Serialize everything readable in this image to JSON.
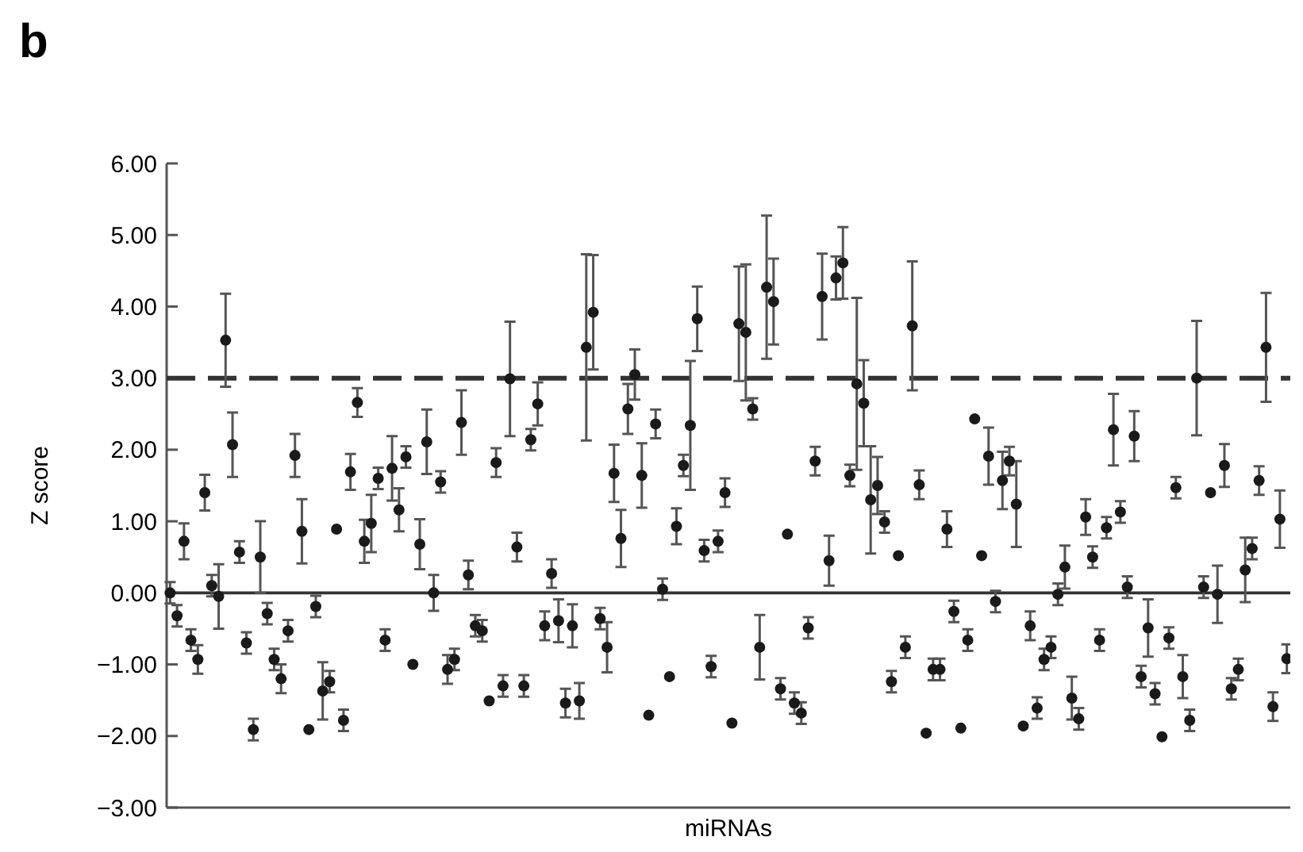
{
  "chart_data": {
    "type": "scatter",
    "title": "b",
    "xlabel": "miRNAs",
    "ylabel": "Z score",
    "color": "#1a1a1a",
    "marker": "circle",
    "tick_labels": "y",
    "ylim": [
      -3,
      6
    ],
    "yticks": [
      {
        "value": 6,
        "label": "6.00"
      },
      {
        "value": 5,
        "label": "5.00"
      },
      {
        "value": 4,
        "label": "4.00"
      },
      {
        "value": 3,
        "label": "3.00"
      },
      {
        "value": 2,
        "label": "2.00"
      },
      {
        "value": 1,
        "label": "1.00"
      },
      {
        "value": 0,
        "label": "0.00"
      },
      {
        "value": -1,
        "label": "−1.00"
      },
      {
        "value": -2,
        "label": "−2.00"
      },
      {
        "value": -3,
        "label": "−3.00"
      }
    ],
    "ref_lines": [
      {
        "axis": "y",
        "value": 3,
        "line_style": "dashed",
        "color": "#333333"
      },
      {
        "axis": "y",
        "value": 0,
        "line_style": "solid",
        "color": "#333333"
      }
    ],
    "categories": [
      null,
      null,
      null,
      null,
      null,
      null,
      null,
      null,
      null,
      null,
      null,
      null,
      null,
      null,
      null,
      null,
      null,
      null,
      null,
      null,
      null,
      null,
      null,
      null,
      null,
      null,
      null,
      null,
      null,
      null,
      null,
      null,
      null,
      null,
      null,
      null,
      null,
      null,
      null,
      null,
      null,
      null,
      null,
      null,
      null,
      null,
      null,
      null,
      null,
      null,
      null,
      null,
      null,
      null,
      null,
      null,
      null,
      null,
      null,
      null,
      null,
      null,
      null,
      null,
      null,
      null,
      null,
      null,
      null,
      null,
      null,
      null,
      null,
      null,
      null,
      null,
      null,
      null,
      null,
      null,
      null,
      null,
      null,
      null,
      null,
      null,
      null,
      null,
      null,
      null,
      null,
      null,
      null,
      null,
      null,
      null,
      null,
      null,
      null,
      null,
      null,
      null,
      null,
      null,
      null,
      null,
      null,
      null,
      null,
      null,
      null,
      null,
      null,
      null,
      null,
      null,
      null,
      null,
      null,
      null,
      null,
      null,
      null,
      null,
      null,
      null,
      null,
      null,
      null,
      null,
      null,
      null,
      null,
      null,
      null,
      null,
      null,
      null,
      null,
      null,
      null,
      null,
      null,
      null,
      null,
      null,
      null,
      null,
      null,
      null,
      null,
      null,
      null,
      null,
      null,
      null,
      null,
      null,
      null,
      null,
      null,
      null
    ],
    "values": [
      0.0,
      -0.32,
      0.72,
      -0.66,
      -0.93,
      1.4,
      0.1,
      -0.05,
      3.53,
      2.07,
      0.57,
      -0.7,
      -1.91,
      0.5,
      -0.29,
      -0.93,
      -1.2,
      -0.53,
      1.92,
      0.86,
      -1.91,
      -0.19,
      -1.37,
      -1.24,
      0.89,
      -1.78,
      1.69,
      2.66,
      0.72,
      0.97,
      1.6,
      -0.66,
      1.74,
      1.16,
      1.9,
      -1.0,
      0.68,
      2.11,
      0,
      1.55,
      -1.07,
      -0.93,
      2.38,
      0.25,
      -0.46,
      -0.53,
      -1.51,
      1.82,
      -1.3,
      2.99,
      0.64,
      -1.3,
      2.14,
      2.64,
      -0.46,
      0.27,
      -0.39,
      -1.54,
      -0.46,
      -1.51,
      3.43,
      3.92,
      -0.36,
      -0.76,
      1.67,
      0.76,
      2.57,
      3.05,
      1.64,
      -1.71,
      2.36,
      0.05,
      -1.17,
      0.93,
      1.78,
      2.34,
      3.83,
      0.59,
      -1.03,
      0.72,
      1.4,
      -1.82,
      3.76,
      3.64,
      2.57,
      -0.76,
      4.27,
      4.07,
      -1.34,
      0.82,
      -1.54,
      -1.68,
      -0.49,
      1.84,
      4.14,
      0.45,
      4.4,
      4.61,
      1.64,
      2.92,
      2.65,
      1.3,
      1.5,
      0.99,
      -1.24,
      0.52,
      -0.76,
      3.73,
      1.51,
      -1.96,
      -1.07,
      -1.07,
      0.89,
      -0.26,
      -1.89,
      -0.66,
      2.43,
      0.52,
      1.91,
      -0.12,
      1.57,
      1.84,
      1.24,
      -1.86,
      -0.46,
      -1.61,
      -0.93,
      -0.76,
      -0.02,
      0.36,
      -1.47,
      -1.76,
      1.06,
      0.5,
      -0.66,
      0.91,
      2.28,
      1.13,
      0.08,
      2.19,
      -1.17,
      -0.49,
      -1.41,
      -2.01,
      -0.63,
      1.47,
      -1.17,
      -1.78,
      3.0,
      0.08,
      1.4,
      -0.02,
      1.78,
      -1.34,
      -1.07,
      0.32,
      0.62,
      1.57,
      3.43,
      -1.59,
      1.03,
      -0.92
    ],
    "errors": [
      0.15,
      0.15,
      0.25,
      0.15,
      0.2,
      0.25,
      0.15,
      0.45,
      0.65,
      0.45,
      0.15,
      0.15,
      0.15,
      0.5,
      0.15,
      0.15,
      0.2,
      0.15,
      0.3,
      0.45,
      null,
      0.15,
      0.4,
      0.15,
      null,
      0.15,
      0.25,
      0.2,
      0.3,
      0.4,
      0.15,
      0.15,
      0.45,
      0.3,
      0.15,
      null,
      0.35,
      0.45,
      0.25,
      0.15,
      0.2,
      0.15,
      0.45,
      0.2,
      0.15,
      0.15,
      null,
      0.2,
      0.15,
      0.8,
      0.2,
      0.15,
      0.15,
      0.3,
      0.2,
      0.2,
      0.3,
      0.2,
      0.3,
      0.25,
      1.3,
      0.8,
      0.15,
      0.35,
      0.4,
      0.4,
      0.35,
      0.35,
      0.45,
      null,
      0.2,
      0.15,
      null,
      0.25,
      0.15,
      0.9,
      0.45,
      0.15,
      0.15,
      0.15,
      0.2,
      null,
      0.8,
      0.95,
      0.15,
      0.45,
      1.0,
      0.6,
      0.15,
      null,
      0.15,
      0.15,
      0.15,
      0.2,
      0.6,
      0.35,
      0.3,
      0.5,
      0.15,
      1.2,
      0.6,
      0.75,
      0.4,
      0.15,
      0.15,
      null,
      0.15,
      0.9,
      0.2,
      null,
      0.15,
      0.15,
      0.25,
      0.15,
      null,
      0.15,
      null,
      null,
      0.4,
      0.15,
      0.4,
      0.2,
      0.6,
      null,
      0.2,
      0.15,
      0.15,
      0.15,
      0.15,
      0.3,
      0.3,
      0.15,
      0.25,
      0.15,
      0.15,
      0.15,
      0.5,
      0.15,
      0.15,
      0.35,
      0.15,
      0.4,
      0.15,
      null,
      0.15,
      0.15,
      0.3,
      0.15,
      0.8,
      0.15,
      null,
      0.4,
      0.3,
      0.15,
      0.15,
      0.45,
      0.15,
      0.2,
      0.76,
      0.2,
      0.4,
      0.2
    ]
  }
}
